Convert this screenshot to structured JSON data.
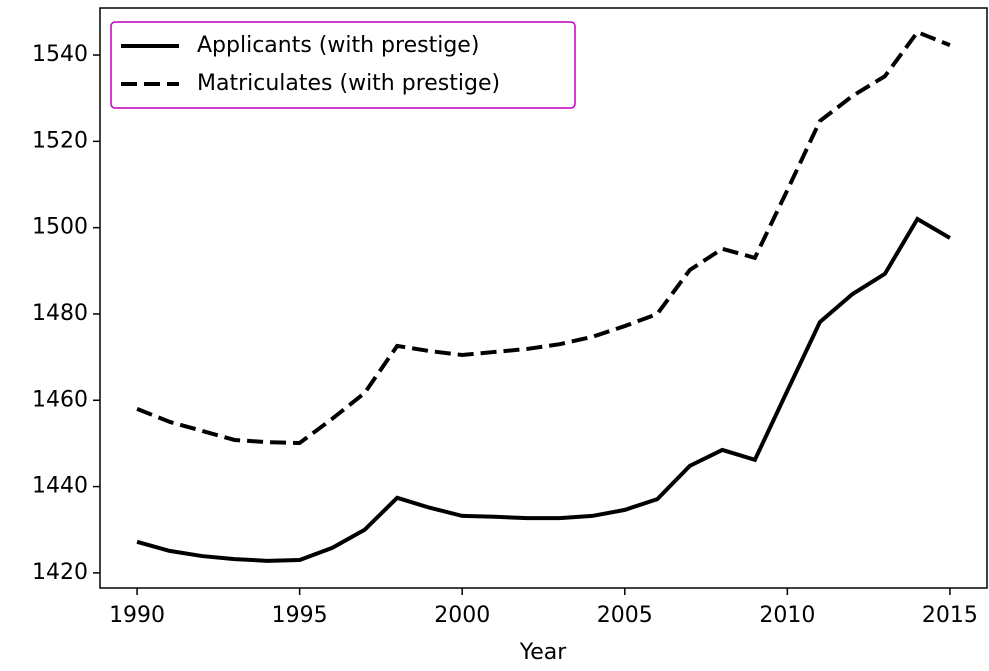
{
  "chart_data": {
    "type": "line",
    "x_label": "Year",
    "x": [
      1990,
      1991,
      1992,
      1993,
      1994,
      1995,
      1996,
      1997,
      1998,
      1999,
      2000,
      2001,
      2002,
      2003,
      2004,
      2005,
      2006,
      2007,
      2008,
      2009,
      2010,
      2011,
      2012,
      2013,
      2014,
      2015
    ],
    "series": [
      {
        "name": "Applicants (with prestige)",
        "color": "#000000",
        "linestyle": "solid",
        "values": [
          1427.2,
          1425.1,
          1423.9,
          1423.2,
          1422.8,
          1423.0,
          1425.8,
          1430.0,
          1437.4,
          1435.1,
          1433.2,
          1433.0,
          1432.7,
          1432.7,
          1433.2,
          1434.6,
          1437.1,
          1444.8,
          1448.5,
          1446.2,
          1462.2,
          1478.1,
          1484.6,
          1489.3,
          1502.0,
          1497.6
        ]
      },
      {
        "name": "Matriculates (with prestige)",
        "color": "#000000",
        "linestyle": "dashed",
        "values": [
          1458.0,
          1455.0,
          1452.9,
          1450.8,
          1450.3,
          1450.1,
          1455.7,
          1461.7,
          1472.6,
          1471.4,
          1470.5,
          1471.2,
          1471.9,
          1473.0,
          1474.7,
          1477.2,
          1480.0,
          1490.2,
          1495.1,
          1493.0,
          1508.7,
          1524.7,
          1530.5,
          1535.1,
          1545.3,
          1542.3
        ]
      }
    ],
    "xlim": [
      1988.86,
      2016.14
    ],
    "xticks": [
      1990,
      1995,
      2000,
      2005,
      2010,
      2015
    ],
    "ylim": [
      1416.5,
      1550.9
    ],
    "yticks": [
      1420,
      1440,
      1460,
      1480,
      1500,
      1520,
      1540
    ],
    "legend": "upper left",
    "legend_edgecolor": "#bf00bf"
  }
}
